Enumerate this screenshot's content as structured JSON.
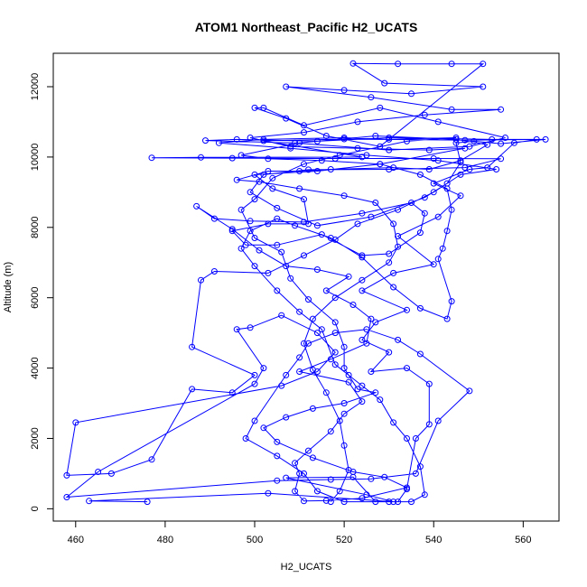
{
  "chart_data": {
    "type": "scatter",
    "title": "ATOM1 Northeast_Pacific H2_UCATS",
    "xlabel": "H2_UCATS",
    "ylabel": "Altitude (m)",
    "xlim": [
      455,
      568
    ],
    "ylim": [
      -350,
      12950
    ],
    "xticks": [
      460,
      480,
      500,
      520,
      540,
      560
    ],
    "yticks": [
      0,
      2000,
      4000,
      6000,
      8000,
      10000,
      12000
    ],
    "grid": false,
    "legend": "none",
    "marker": "open-circle",
    "connected_lines": true,
    "series": [
      {
        "color": "#0000ff",
        "points": [
          [
            476,
            200
          ],
          [
            463,
            220
          ],
          [
            503,
            440
          ],
          [
            531,
            200
          ],
          [
            525,
            400
          ],
          [
            507,
            880
          ],
          [
            522,
            900
          ],
          [
            527,
            200
          ],
          [
            532,
            200
          ],
          [
            534,
            560
          ],
          [
            536,
            2000
          ],
          [
            539,
            2400
          ],
          [
            539,
            3550
          ],
          [
            534,
            4000
          ],
          [
            526,
            3900
          ],
          [
            530,
            4450
          ],
          [
            524,
            4800
          ],
          [
            527,
            5300
          ],
          [
            534,
            5650
          ],
          [
            524,
            6200
          ],
          [
            531,
            6700
          ],
          [
            540,
            6950
          ],
          [
            532,
            7750
          ],
          [
            541,
            8300
          ],
          [
            546,
            8900
          ],
          [
            540,
            9250
          ],
          [
            548,
            9650
          ],
          [
            552,
            9700
          ],
          [
            558,
            10400
          ],
          [
            563,
            10500
          ],
          [
            547,
            10480
          ],
          [
            520,
            10510
          ],
          [
            502,
            10460
          ],
          [
            524,
            10000
          ],
          [
            488,
            9990
          ],
          [
            477,
            9980
          ],
          [
            495,
            9970
          ],
          [
            518,
            9960
          ],
          [
            540,
            9960
          ],
          [
            555,
            9950
          ],
          [
            547,
            9700
          ],
          [
            530,
            9650
          ],
          [
            512,
            9640
          ],
          [
            502,
            9500
          ],
          [
            499,
            9000
          ],
          [
            505,
            8550
          ],
          [
            514,
            8050
          ],
          [
            526,
            8300
          ],
          [
            538,
            8850
          ],
          [
            543,
            9250
          ],
          [
            546,
            9850
          ],
          [
            545,
            10400
          ],
          [
            549,
            10450
          ],
          [
            555,
            10380
          ],
          [
            565,
            10500
          ],
          [
            553,
            10500
          ],
          [
            530,
            10550
          ],
          [
            514,
            10450
          ],
          [
            496,
            10500
          ],
          [
            489,
            10470
          ],
          [
            509,
            10400
          ],
          [
            530,
            10200
          ],
          [
            548,
            10300
          ],
          [
            556,
            10550
          ],
          [
            541,
            11000
          ],
          [
            528,
            11400
          ],
          [
            511,
            10900
          ],
          [
            502,
            11400
          ],
          [
            500,
            11400
          ],
          [
            507,
            11100
          ],
          [
            516,
            10600
          ],
          [
            528,
            10300
          ],
          [
            551,
            12650
          ],
          [
            544,
            12650
          ],
          [
            532,
            12650
          ],
          [
            522,
            12660
          ],
          [
            529,
            12100
          ],
          [
            551,
            12000
          ],
          [
            535,
            11800
          ],
          [
            520,
            11900
          ],
          [
            507,
            12000
          ],
          [
            526,
            11700
          ],
          [
            544,
            11350
          ],
          [
            555,
            11350
          ],
          [
            538,
            11200
          ],
          [
            523,
            11000
          ],
          [
            511,
            10700
          ],
          [
            499,
            10550
          ],
          [
            508,
            10300
          ],
          [
            523,
            10250
          ],
          [
            539,
            10200
          ],
          [
            547,
            10250
          ],
          [
            528,
            9800
          ],
          [
            514,
            9600
          ],
          [
            500,
            9500
          ],
          [
            504,
            9100
          ],
          [
            511,
            8800
          ],
          [
            512,
            8100
          ],
          [
            503,
            8100
          ],
          [
            495,
            7900
          ],
          [
            498,
            7500
          ],
          [
            505,
            7500
          ],
          [
            515,
            7800
          ],
          [
            524,
            7200
          ],
          [
            530,
            7250
          ],
          [
            537,
            7850
          ],
          [
            538,
            8400
          ],
          [
            535,
            8700
          ],
          [
            524,
            8400
          ],
          [
            511,
            8150
          ],
          [
            499,
            8180
          ],
          [
            491,
            8250
          ],
          [
            487,
            8600
          ],
          [
            495,
            7950
          ],
          [
            501,
            7350
          ],
          [
            507,
            6900
          ],
          [
            514,
            6800
          ],
          [
            521,
            6600
          ],
          [
            516,
            6200
          ],
          [
            522,
            5800
          ],
          [
            526,
            5400
          ],
          [
            525,
            4700
          ],
          [
            517,
            4250
          ],
          [
            510,
            3900
          ],
          [
            521,
            3600
          ],
          [
            524,
            3050
          ],
          [
            520,
            2700
          ],
          [
            517,
            2200
          ],
          [
            512,
            1650
          ],
          [
            509,
            1300
          ],
          [
            510,
            1000
          ],
          [
            509,
            500
          ],
          [
            511,
            220
          ],
          [
            516,
            230
          ],
          [
            524,
            300
          ],
          [
            534,
            600
          ],
          [
            529,
            900
          ],
          [
            522,
            1050
          ],
          [
            513,
            1450
          ],
          [
            505,
            1900
          ],
          [
            502,
            2300
          ],
          [
            507,
            2600
          ],
          [
            513,
            2850
          ],
          [
            520,
            3000
          ],
          [
            527,
            3300
          ],
          [
            523,
            3400
          ],
          [
            520,
            4000
          ],
          [
            520,
            4600
          ],
          [
            518,
            5300
          ],
          [
            512,
            5950
          ],
          [
            508,
            6550
          ],
          [
            506,
            7300
          ],
          [
            500,
            7700
          ],
          [
            497,
            8500
          ],
          [
            500,
            8800
          ],
          [
            504,
            9400
          ],
          [
            511,
            9800
          ],
          [
            519,
            10050
          ],
          [
            534,
            10450
          ],
          [
            545,
            10550
          ],
          [
            530,
            10500
          ],
          [
            520,
            10550
          ],
          [
            502,
            10500
          ],
          [
            492,
            10400
          ],
          [
            508,
            10250
          ],
          [
            525,
            10050
          ],
          [
            541,
            9900
          ],
          [
            554,
            9650
          ],
          [
            546,
            9500
          ],
          [
            540,
            9000
          ],
          [
            532,
            8500
          ],
          [
            523,
            8100
          ],
          [
            518,
            7650
          ],
          [
            511,
            7200
          ],
          [
            503,
            6700
          ],
          [
            491,
            6750
          ],
          [
            488,
            6500
          ],
          [
            486,
            4600
          ],
          [
            500,
            3800
          ],
          [
            495,
            3300
          ],
          [
            486,
            3400
          ],
          [
            477,
            1400
          ],
          [
            468,
            1000
          ],
          [
            458,
            950
          ],
          [
            460,
            2450
          ],
          [
            506,
            3500
          ],
          [
            514,
            3900
          ],
          [
            518,
            4450
          ],
          [
            514,
            5000
          ],
          [
            506,
            5500
          ],
          [
            499,
            5150
          ],
          [
            496,
            5100
          ],
          [
            502,
            4000
          ],
          [
            500,
            3550
          ],
          [
            465,
            1050
          ],
          [
            458,
            330
          ],
          [
            505,
            800
          ],
          [
            517,
            830
          ],
          [
            526,
            850
          ],
          [
            536,
            1000
          ],
          [
            541,
            2500
          ],
          [
            548,
            3350
          ],
          [
            537,
            4400
          ],
          [
            532,
            4800
          ],
          [
            525,
            5100
          ],
          [
            518,
            5000
          ],
          [
            512,
            4700
          ],
          [
            510,
            4300
          ],
          [
            507,
            3800
          ],
          [
            500,
            2500
          ],
          [
            498,
            2000
          ],
          [
            505,
            1500
          ],
          [
            511,
            1000
          ],
          [
            514,
            500
          ],
          [
            520,
            200
          ],
          [
            530,
            200
          ],
          [
            535,
            200
          ],
          [
            538,
            400
          ],
          [
            537,
            1200
          ],
          [
            534,
            2000
          ],
          [
            531,
            2450
          ],
          [
            528,
            3100
          ],
          [
            524,
            3500
          ],
          [
            521,
            3800
          ],
          [
            518,
            4100
          ],
          [
            515,
            5100
          ],
          [
            510,
            5600
          ],
          [
            505,
            6200
          ],
          [
            500,
            6900
          ],
          [
            497,
            7400
          ],
          [
            499,
            7900
          ],
          [
            505,
            8250
          ],
          [
            509,
            8050
          ],
          [
            517,
            7700
          ],
          [
            524,
            7150
          ],
          [
            531,
            6300
          ],
          [
            537,
            5700
          ],
          [
            543,
            5400
          ],
          [
            544,
            5900
          ],
          [
            541,
            7100
          ],
          [
            542,
            7400
          ],
          [
            543,
            7900
          ],
          [
            544,
            8500
          ],
          [
            543,
            9100
          ],
          [
            537,
            9500
          ],
          [
            528,
            9800
          ],
          [
            515,
            9900
          ],
          [
            503,
            9950
          ],
          [
            497,
            10050
          ],
          [
            510,
            10400
          ],
          [
            527,
            10600
          ],
          [
            545,
            10500
          ],
          [
            552,
            10350
          ],
          [
            546,
            9900
          ],
          [
            539,
            9650
          ],
          [
            531,
            9700
          ],
          [
            517,
            9650
          ],
          [
            510,
            9600
          ],
          [
            503,
            9600
          ],
          [
            496,
            9350
          ],
          [
            501,
            9300
          ],
          [
            510,
            9100
          ],
          [
            520,
            8900
          ],
          [
            527,
            8700
          ],
          [
            531,
            8100
          ],
          [
            532,
            7450
          ],
          [
            530,
            7000
          ],
          [
            524,
            6500
          ],
          [
            518,
            6000
          ],
          [
            513,
            5400
          ],
          [
            511,
            4700
          ],
          [
            513,
            3950
          ],
          [
            516,
            3300
          ],
          [
            519,
            2500
          ],
          [
            520,
            1800
          ],
          [
            521,
            1100
          ],
          [
            519,
            500
          ],
          [
            517,
            200
          ]
        ]
      }
    ]
  }
}
